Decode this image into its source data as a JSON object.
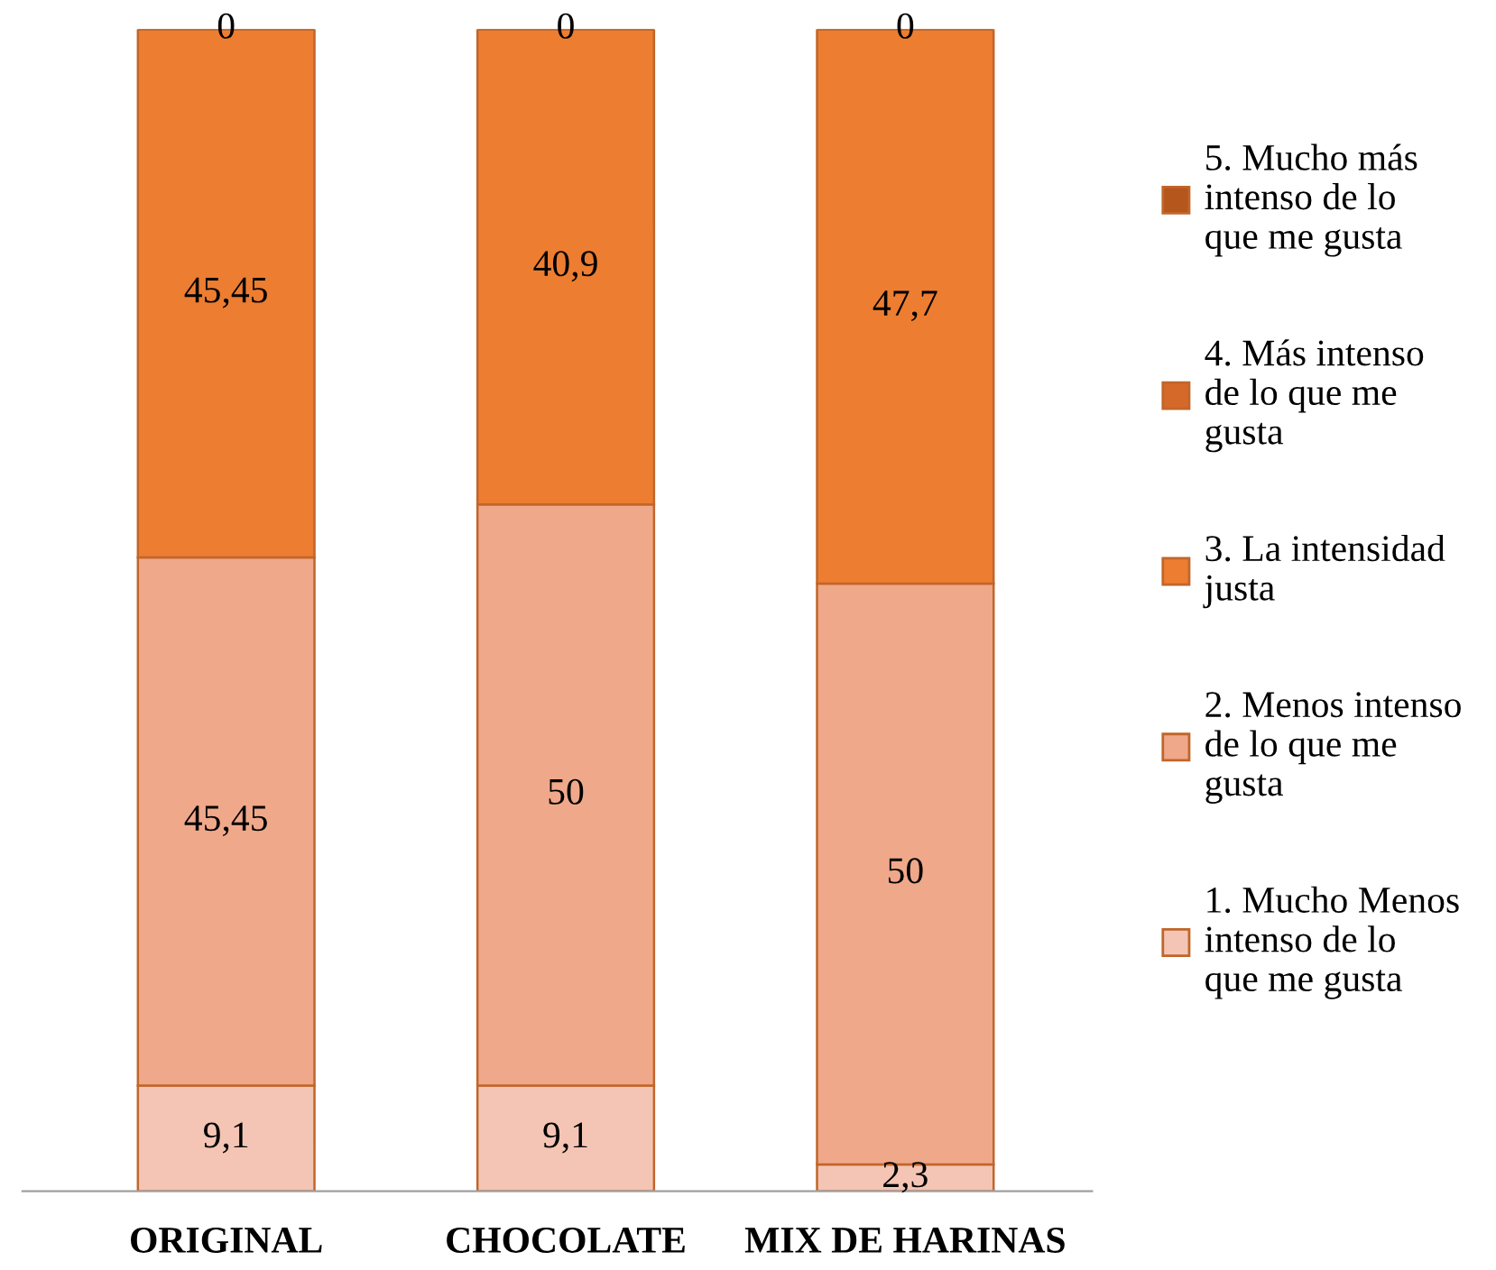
{
  "chart_data": {
    "type": "bar",
    "stacked": true,
    "categories": [
      "ORIGINAL",
      "CHOCOLATE",
      "MIX DE HARINAS"
    ],
    "ylim": [
      0,
      100
    ],
    "tick_labels": "x",
    "grid": false,
    "legend": "right",
    "series": [
      {
        "name": "1. Mucho Menos intenso de lo que me gusta",
        "color": "#f4c5b4",
        "values": [
          9.1,
          9.1,
          2.3
        ],
        "value_labels": [
          "9,1",
          "9,1",
          "2,3"
        ]
      },
      {
        "name": "2. Menos intenso de lo que me gusta",
        "color": "#f0a88a",
        "values": [
          45.45,
          50,
          50
        ],
        "value_labels": [
          "45,45",
          "50",
          "50"
        ]
      },
      {
        "name": "3. La intensidad justa",
        "color": "#ed7d31",
        "values": [
          45.45,
          40.9,
          47.7
        ],
        "value_labels": [
          "45,45",
          "40,9",
          "47,7"
        ]
      },
      {
        "name": "4. Más intenso de lo que me gusta",
        "color": "#d4692a",
        "values": [
          0,
          0,
          0
        ],
        "value_labels": [
          null,
          null,
          null
        ]
      },
      {
        "name": "5. Mucho más intenso de lo que me gusta",
        "color": "#b5561c",
        "values": [
          0,
          0,
          0
        ],
        "value_labels": [
          "0",
          "0",
          "0"
        ]
      }
    ]
  }
}
